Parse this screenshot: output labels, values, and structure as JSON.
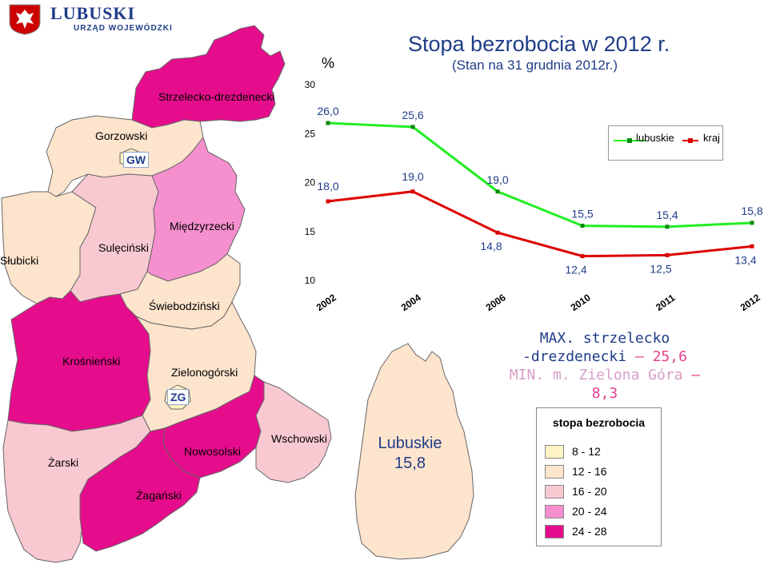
{
  "header": {
    "org_name": "LUBUSKI",
    "org_sub": "URZĄD WOJEWÓDZKI"
  },
  "title": "Stopa bezrobocia w 2012 r.",
  "subtitle": "(Stan na 31 grudnia 2012r.)",
  "colors": {
    "class_8_12": "#fdf3c3",
    "class_12_16": "#fde4cd",
    "class_16_20": "#f9c9d2",
    "class_20_24": "#f58fce",
    "class_24_28": "#e60d8c",
    "series_lubuskie": "#22ee22",
    "series_kraj": "#dd0000",
    "text_blue": "#1f3c88"
  },
  "counties": [
    {
      "name": "Strzelecko-drezdenecki",
      "class": "24 - 28"
    },
    {
      "name": "Gorzowski",
      "class": "12 - 16"
    },
    {
      "name": "Słubicki",
      "class": "12 - 16"
    },
    {
      "name": "Sulęciński",
      "class": "16 - 20"
    },
    {
      "name": "Międzyrzecki",
      "class": "20 - 24"
    },
    {
      "name": "Świebodziński",
      "class": "12 - 16"
    },
    {
      "name": "Krośnieński",
      "class": "24 - 28"
    },
    {
      "name": "Zielonogórski",
      "class": "12 - 16"
    },
    {
      "name": "Żarski",
      "class": "16 - 20"
    },
    {
      "name": "Żagański",
      "class": "24 - 28"
    },
    {
      "name": "Nowosolski",
      "class": "24 - 28"
    },
    {
      "name": "Wschowski",
      "class": "16 - 20"
    }
  ],
  "city_badges": {
    "gw": "GW",
    "zg": "ZG"
  },
  "center_label": {
    "line1": "Lubuskie",
    "line2": "15,8"
  },
  "stats": {
    "max_label": "MAX. strzelecko",
    "max_line2": "-drezdenecki",
    "max_value": "– 25,6",
    "min_label": "MIN. m. Zielona Góra",
    "min_value": "– 8,3"
  },
  "legend": {
    "title": "stopa bezrobocia",
    "items": [
      {
        "label": "8 - 12",
        "color": "#fdf3c3"
      },
      {
        "label": "12 - 16",
        "color": "#fde4cd"
      },
      {
        "label": "16 - 20",
        "color": "#f9c9d2"
      },
      {
        "label": "20 - 24",
        "color": "#f58fce"
      },
      {
        "label": "24 - 28",
        "color": "#e60d8c"
      }
    ]
  },
  "chart_data": {
    "type": "line",
    "ylabel": "%",
    "ylim": [
      10,
      30
    ],
    "y_ticks": [
      "10",
      "15",
      "20",
      "25",
      "30"
    ],
    "categories": [
      "2002",
      "2004",
      "2006",
      "2010",
      "2011",
      "2012"
    ],
    "series": [
      {
        "name": "lubuskie",
        "values": [
          26.0,
          25.6,
          19.0,
          15.5,
          15.4,
          15.8
        ],
        "labels": [
          "26,0",
          "25,6",
          "19,0",
          "15,5",
          "15,4",
          "15,8"
        ]
      },
      {
        "name": "kraj",
        "values": [
          18.0,
          19.0,
          14.8,
          12.4,
          12.5,
          13.4
        ],
        "labels": [
          "18,0",
          "19,0",
          "14,8",
          "12,4",
          "12,5",
          "13,4"
        ]
      }
    ],
    "legend_position": "top-right",
    "grid": false
  }
}
